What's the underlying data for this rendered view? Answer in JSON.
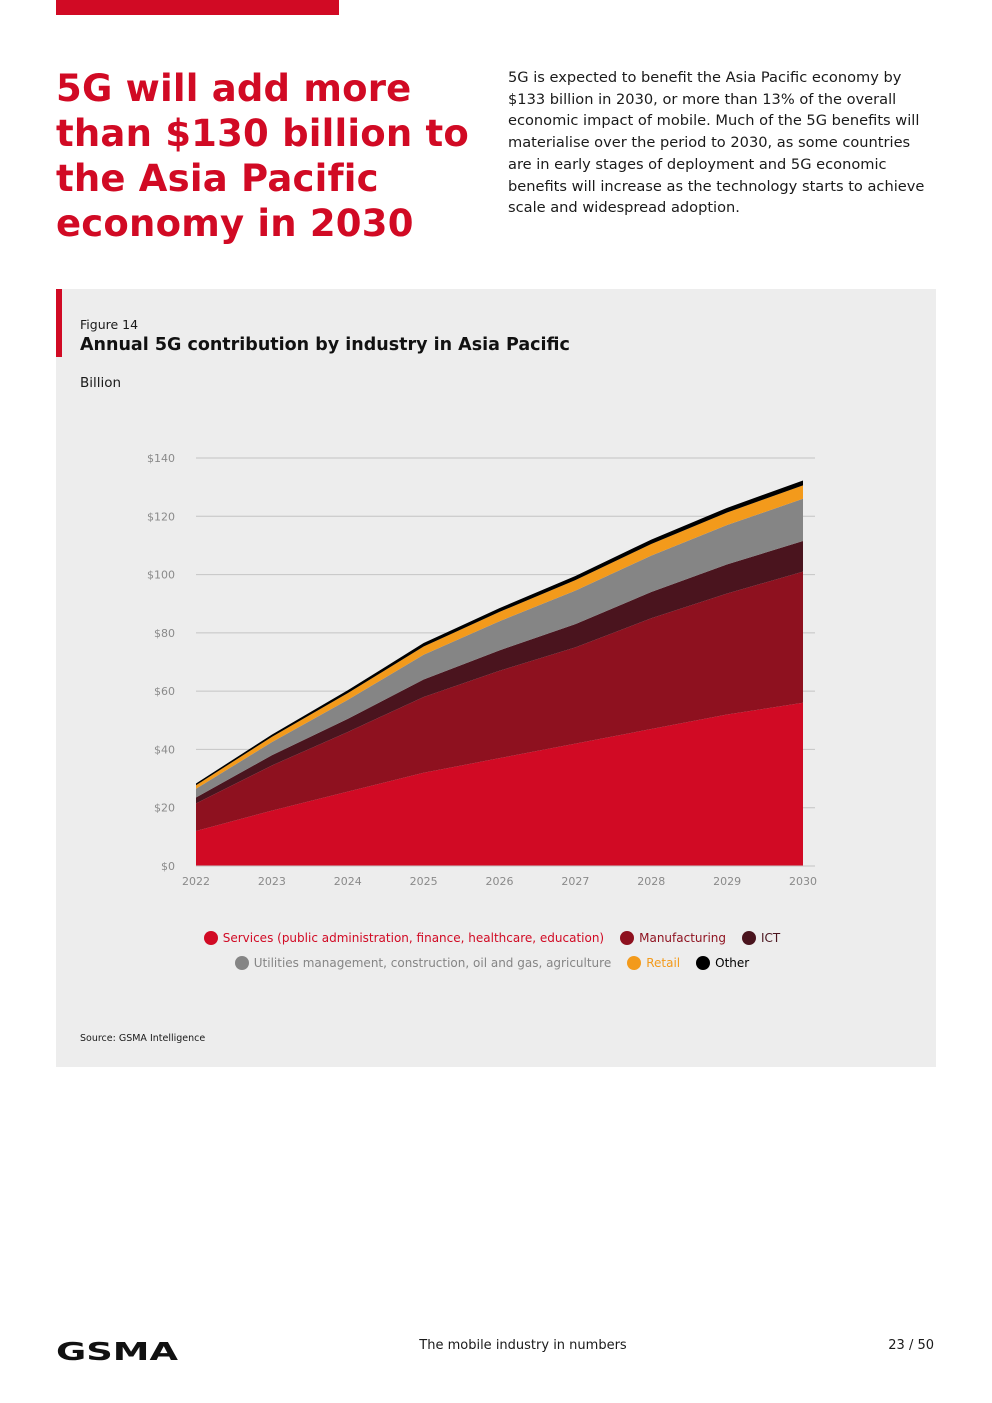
{
  "headline": "5G will add more than $130 billion to the Asia Pacific economy in 2030",
  "intro": "5G is expected to benefit the Asia Pacific economy by $133 billion in 2030, or more than 13% of the overall economic impact of mobile. Much of the 5G benefits will materialise over the period to 2030, as some countries are in early stages of deployment and 5G economic benefits will increase as the technology starts to achieve scale and widespread adoption.",
  "figure": {
    "label": "Figure 14",
    "title": "Annual 5G contribution by industry in Asia Pacific",
    "unit": "Billion",
    "source": "Source: GSMA Intelligence"
  },
  "chart_data": {
    "type": "area",
    "stacked": true,
    "title": "Annual 5G contribution by industry in Asia Pacific",
    "ylabel": "Billion",
    "ylim": [
      0,
      140
    ],
    "y_ticks": [
      "$0",
      "$20",
      "$40",
      "$60",
      "$80",
      "$100",
      "$120",
      "$140"
    ],
    "y_tick_values": [
      0,
      20,
      40,
      60,
      80,
      100,
      120,
      140
    ],
    "x": [
      "2022",
      "2023",
      "2024",
      "2025",
      "2026",
      "2027",
      "2028",
      "2029",
      "2030"
    ],
    "grid": true,
    "legend_position": "bottom",
    "series": [
      {
        "name": "Services (public administration, finance, healthcare, education)",
        "color": "#d10a24",
        "values": [
          12,
          19,
          25.5,
          32,
          37,
          42,
          47,
          52,
          56
        ]
      },
      {
        "name": "Manufacturing",
        "color": "#8e111f",
        "values": [
          9.5,
          15.5,
          20.5,
          26,
          30,
          33,
          38,
          41.5,
          45
        ]
      },
      {
        "name": "ICT",
        "color": "#4a141e",
        "values": [
          2,
          3.5,
          4.5,
          6,
          7,
          8,
          9,
          10,
          10.5
        ]
      },
      {
        "name": "Utilities management, construction, oil and gas, agriculture",
        "color": "#858585",
        "values": [
          3,
          4.5,
          6.5,
          8.5,
          10,
          11.5,
          12.5,
          13.5,
          14.5
        ]
      },
      {
        "name": "Retail",
        "color": "#f39a1b",
        "values": [
          1.2,
          1.8,
          2.3,
          2.8,
          3.2,
          3.6,
          4,
          4.3,
          4.6
        ]
      },
      {
        "name": "Other",
        "color": "#000000",
        "values": [
          0.6,
          0.8,
          1,
          1.2,
          1.3,
          1.4,
          1.5,
          1.6,
          1.7
        ]
      }
    ],
    "legend_text_colors": [
      "#d10a24",
      "#8e111f",
      "#4a141e",
      "#858585",
      "#f39a1b",
      "#000000"
    ]
  },
  "footer": {
    "logo_text": "GSMA",
    "center": "The mobile industry in numbers",
    "page": "23 / 50"
  }
}
